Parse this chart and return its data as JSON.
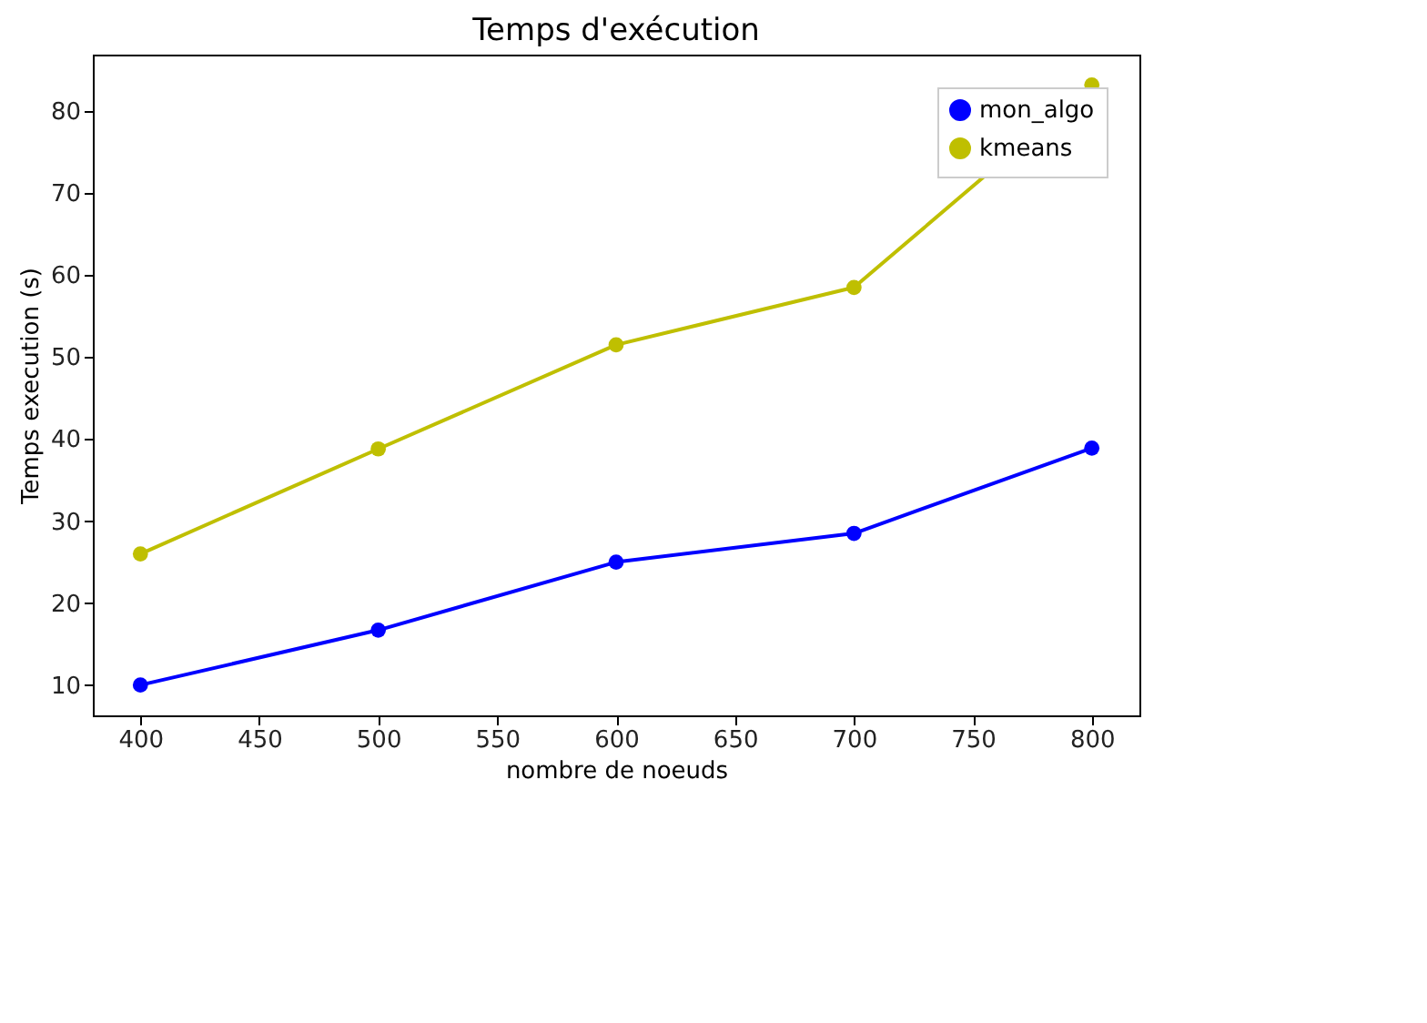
{
  "chart_data": {
    "type": "line",
    "title": "Temps d'exécution",
    "xlabel": "nombre de noeuds",
    "ylabel": "Temps execution (s)",
    "x": [
      400,
      500,
      600,
      700,
      800
    ],
    "series": [
      {
        "name": "mon_algo",
        "color": "#0000ff",
        "values": [
          10,
          16.7,
          25,
          28.5,
          38.9
        ]
      },
      {
        "name": "kmeans",
        "color": "#bfbf00",
        "values": [
          26,
          38.8,
          51.5,
          58.5,
          83.2
        ]
      }
    ],
    "xlim": [
      380,
      820
    ],
    "xticks": [
      400,
      450,
      500,
      550,
      600,
      650,
      700,
      750,
      800
    ],
    "ylim": [
      6.3,
      86.9
    ],
    "yticks": [
      10,
      20,
      30,
      40,
      50,
      60,
      70,
      80
    ],
    "legend": "top right",
    "marker": "circle",
    "grid": false
  }
}
